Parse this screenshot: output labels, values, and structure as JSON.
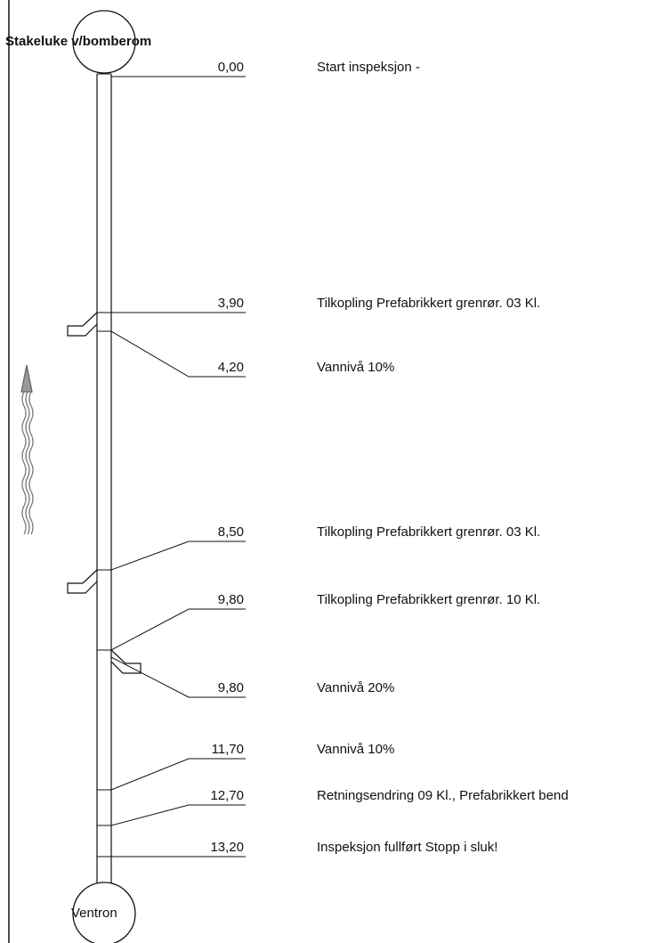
{
  "diagram": {
    "start_manhole": "Stakeluke v/bomberom",
    "end_manhole": "Ventron",
    "events": [
      {
        "distance": "0,00",
        "description": "Start inspeksjon -"
      },
      {
        "distance": "3,90",
        "description": "Tilkopling Prefabrikkert grenrør.  03 Kl."
      },
      {
        "distance": "4,20",
        "description": "Vannivå 10%"
      },
      {
        "distance": "8,50",
        "description": "Tilkopling Prefabrikkert grenrør.  03 Kl."
      },
      {
        "distance": "9,80",
        "description": "Tilkopling Prefabrikkert grenrør.  10 Kl."
      },
      {
        "distance": "9,80",
        "description": "Vannivå 20%"
      },
      {
        "distance": "11,70",
        "description": "Vannivå 10%"
      },
      {
        "distance": "12,70",
        "description": "Retningsendring  09 Kl., Prefabrikkert bend"
      },
      {
        "distance": "13,20",
        "description": "Inspeksjon fullført Stopp i sluk!"
      }
    ]
  },
  "colors": {
    "line": "#111111",
    "arrow": "#888888"
  },
  "icons": {
    "flow_direction": "flow-arrow-icon"
  }
}
